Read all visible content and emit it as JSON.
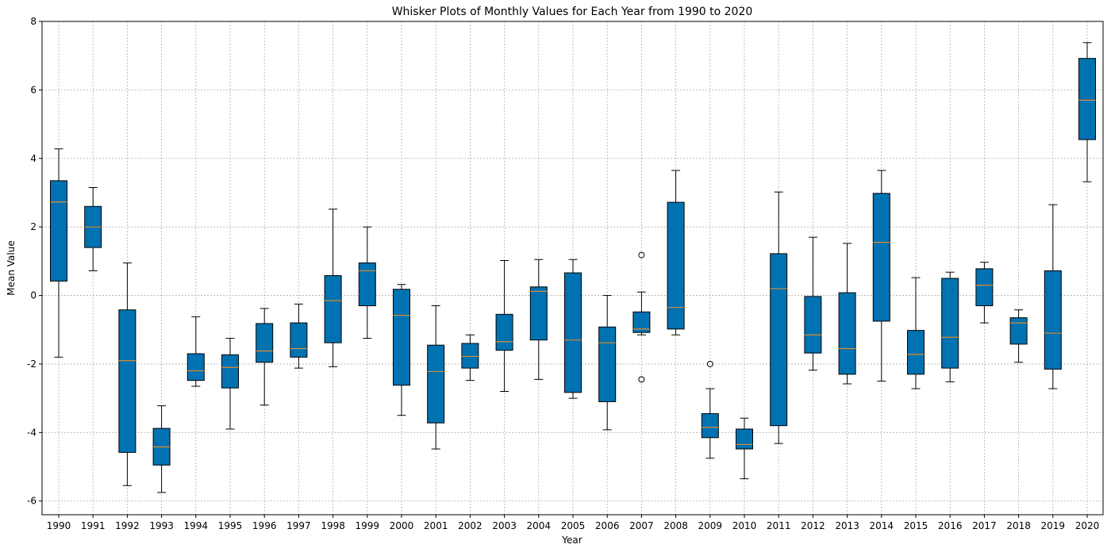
{
  "chart_data": {
    "type": "box",
    "title": "Whisker Plots of Monthly Values for Each Year from 1990 to 2020",
    "xlabel": "Year",
    "ylabel": "Mean Value",
    "ylim": [
      -6.4,
      8.0
    ],
    "yticks": [
      -6,
      -4,
      -2,
      0,
      2,
      4,
      6,
      8
    ],
    "grid": true,
    "box_color": "#0072b2",
    "median_color": "#e08a2c",
    "categories": [
      "1990",
      "1991",
      "1992",
      "1993",
      "1994",
      "1995",
      "1996",
      "1997",
      "1998",
      "1999",
      "2000",
      "2001",
      "2002",
      "2003",
      "2004",
      "2005",
      "2006",
      "2007",
      "2008",
      "2009",
      "2010",
      "2011",
      "2012",
      "2013",
      "2014",
      "2015",
      "2016",
      "2017",
      "2018",
      "2019",
      "2020"
    ],
    "boxes": [
      {
        "year": "1990",
        "whislo": -1.8,
        "q1": 0.42,
        "med": 2.73,
        "q3": 3.35,
        "whishi": 4.28,
        "fliers": []
      },
      {
        "year": "1991",
        "whislo": 0.72,
        "q1": 1.4,
        "med": 2.0,
        "q3": 2.6,
        "whishi": 3.15,
        "fliers": []
      },
      {
        "year": "1992",
        "whislo": -5.55,
        "q1": -4.58,
        "med": -1.9,
        "q3": -0.42,
        "whishi": 0.95,
        "fliers": []
      },
      {
        "year": "1993",
        "whislo": -5.75,
        "q1": -4.95,
        "med": -4.42,
        "q3": -3.88,
        "whishi": -3.22,
        "fliers": []
      },
      {
        "year": "1994",
        "whislo": -2.65,
        "q1": -2.48,
        "med": -2.2,
        "q3": -1.7,
        "whishi": -0.62,
        "fliers": []
      },
      {
        "year": "1995",
        "whislo": -3.9,
        "q1": -2.7,
        "med": -2.1,
        "q3": -1.73,
        "whishi": -1.25,
        "fliers": []
      },
      {
        "year": "1996",
        "whislo": -3.2,
        "q1": -1.95,
        "med": -1.62,
        "q3": -0.82,
        "whishi": -0.38,
        "fliers": []
      },
      {
        "year": "1997",
        "whislo": -2.12,
        "q1": -1.8,
        "med": -1.55,
        "q3": -0.8,
        "whishi": -0.25,
        "fliers": []
      },
      {
        "year": "1998",
        "whislo": -2.08,
        "q1": -1.38,
        "med": -0.15,
        "q3": 0.58,
        "whishi": 2.52,
        "fliers": []
      },
      {
        "year": "1999",
        "whislo": -1.25,
        "q1": -0.3,
        "med": 0.72,
        "q3": 0.95,
        "whishi": 2.0,
        "fliers": []
      },
      {
        "year": "2000",
        "whislo": -3.5,
        "q1": -2.62,
        "med": -0.58,
        "q3": 0.18,
        "whishi": 0.32,
        "fliers": []
      },
      {
        "year": "2001",
        "whislo": -4.48,
        "q1": -3.72,
        "med": -2.22,
        "q3": -1.45,
        "whishi": -0.3,
        "fliers": []
      },
      {
        "year": "2002",
        "whislo": -2.48,
        "q1": -2.12,
        "med": -1.78,
        "q3": -1.4,
        "whishi": -1.15,
        "fliers": []
      },
      {
        "year": "2003",
        "whislo": -2.8,
        "q1": -1.6,
        "med": -1.35,
        "q3": -0.55,
        "whishi": 1.02,
        "fliers": []
      },
      {
        "year": "2004",
        "whislo": -2.45,
        "q1": -1.3,
        "med": 0.12,
        "q3": 0.25,
        "whishi": 1.05,
        "fliers": []
      },
      {
        "year": "2005",
        "whislo": -3.0,
        "q1": -2.83,
        "med": -1.3,
        "q3": 0.66,
        "whishi": 1.05,
        "fliers": []
      },
      {
        "year": "2006",
        "whislo": -3.92,
        "q1": -3.1,
        "med": -1.38,
        "q3": -0.92,
        "whishi": 0.0,
        "fliers": []
      },
      {
        "year": "2007",
        "whislo": -1.15,
        "q1": -1.08,
        "med": -0.98,
        "q3": -0.48,
        "whishi": 0.1,
        "fliers": [
          1.18,
          -2.45
        ]
      },
      {
        "year": "2008",
        "whislo": -1.15,
        "q1": -0.98,
        "med": -0.35,
        "q3": 2.72,
        "whishi": 3.65,
        "fliers": []
      },
      {
        "year": "2009",
        "whislo": -4.75,
        "q1": -4.15,
        "med": -3.85,
        "q3": -3.45,
        "whishi": -2.72,
        "fliers": [
          -2.0
        ]
      },
      {
        "year": "2010",
        "whislo": -5.35,
        "q1": -4.48,
        "med": -4.35,
        "q3": -3.9,
        "whishi": -3.58,
        "fliers": []
      },
      {
        "year": "2011",
        "whislo": -4.32,
        "q1": -3.8,
        "med": 0.2,
        "q3": 1.22,
        "whishi": 3.02,
        "fliers": []
      },
      {
        "year": "2012",
        "whislo": -2.18,
        "q1": -1.68,
        "med": -1.15,
        "q3": -0.03,
        "whishi": 1.7,
        "fliers": []
      },
      {
        "year": "2013",
        "whislo": -2.58,
        "q1": -2.3,
        "med": -1.55,
        "q3": 0.08,
        "whishi": 1.52,
        "fliers": []
      },
      {
        "year": "2014",
        "whislo": -2.5,
        "q1": -0.75,
        "med": 1.55,
        "q3": 2.98,
        "whishi": 3.65,
        "fliers": []
      },
      {
        "year": "2015",
        "whislo": -2.72,
        "q1": -2.3,
        "med": -1.72,
        "q3": -1.02,
        "whishi": 0.52,
        "fliers": []
      },
      {
        "year": "2016",
        "whislo": -2.52,
        "q1": -2.12,
        "med": -1.22,
        "q3": 0.5,
        "whishi": 0.68,
        "fliers": []
      },
      {
        "year": "2017",
        "whislo": -0.8,
        "q1": -0.3,
        "med": 0.3,
        "q3": 0.78,
        "whishi": 0.97,
        "fliers": []
      },
      {
        "year": "2018",
        "whislo": -1.95,
        "q1": -1.42,
        "med": -0.8,
        "q3": -0.65,
        "whishi": -0.42,
        "fliers": []
      },
      {
        "year": "2019",
        "whislo": -2.72,
        "q1": -2.15,
        "med": -1.1,
        "q3": 0.72,
        "whishi": 2.65,
        "fliers": []
      },
      {
        "year": "2020",
        "whislo": 3.32,
        "q1": 4.55,
        "med": 5.7,
        "q3": 6.92,
        "whishi": 7.38,
        "fliers": []
      }
    ]
  }
}
